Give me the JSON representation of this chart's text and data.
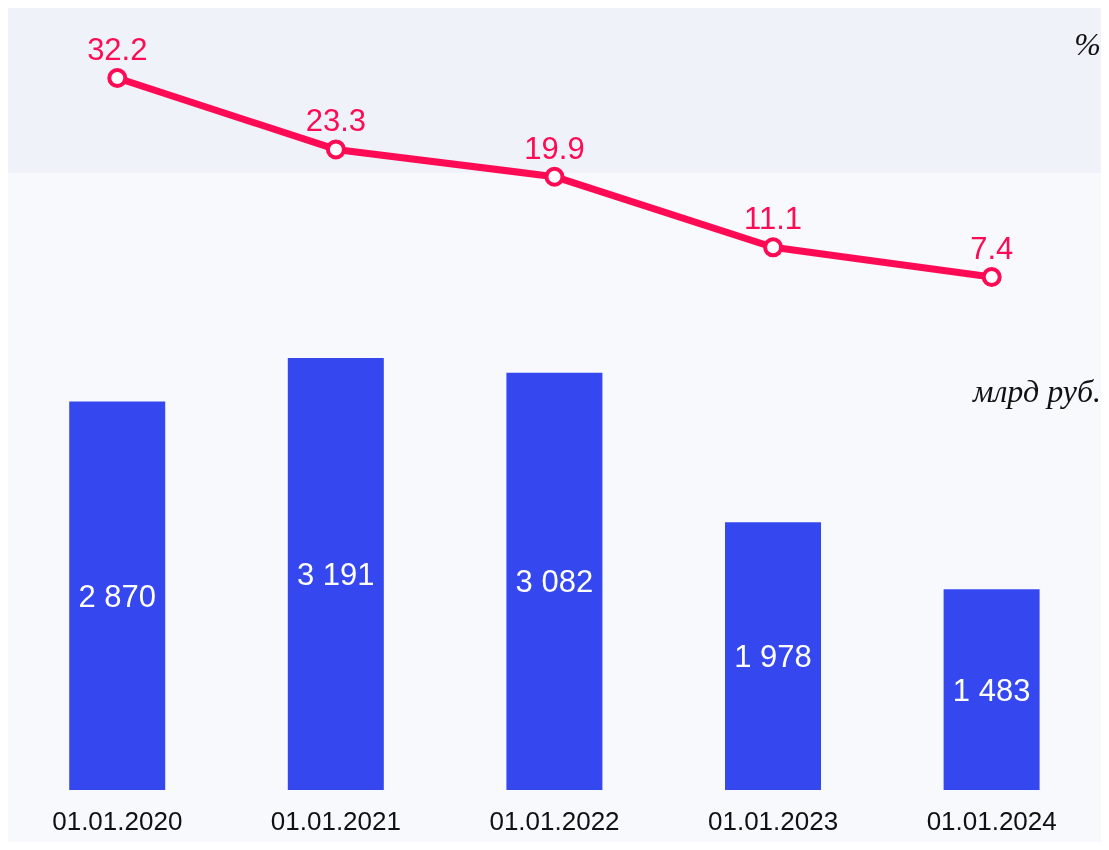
{
  "chart_data": [
    {
      "type": "line",
      "annotations": [
        "%"
      ],
      "categories": [
        null,
        null,
        null,
        null,
        null
      ],
      "series": [
        {
          "color": "#ff0a54",
          "values": [
            32.2,
            23.3,
            19.9,
            11.1,
            7.4
          ],
          "value_labels": [
            "32.2",
            "23.3",
            "19.9",
            "11.1",
            "7.4"
          ]
        }
      ],
      "marker": "circle",
      "line_style": "solid",
      "legend": false,
      "grid": false
    },
    {
      "type": "bar",
      "annotations": [
        "млрд руб."
      ],
      "categories": [
        "01.01.2020",
        "01.01.2021",
        "01.01.2022",
        "01.01.2023",
        "01.01.2024"
      ],
      "series": [
        {
          "color": "#3548f0",
          "values": [
            2870,
            3191,
            3082,
            1978,
            1483
          ],
          "value_labels": [
            "2 870",
            "3 191",
            "3 082",
            "1 978",
            "1 483"
          ]
        }
      ],
      "legend": false,
      "grid": false
    }
  ]
}
